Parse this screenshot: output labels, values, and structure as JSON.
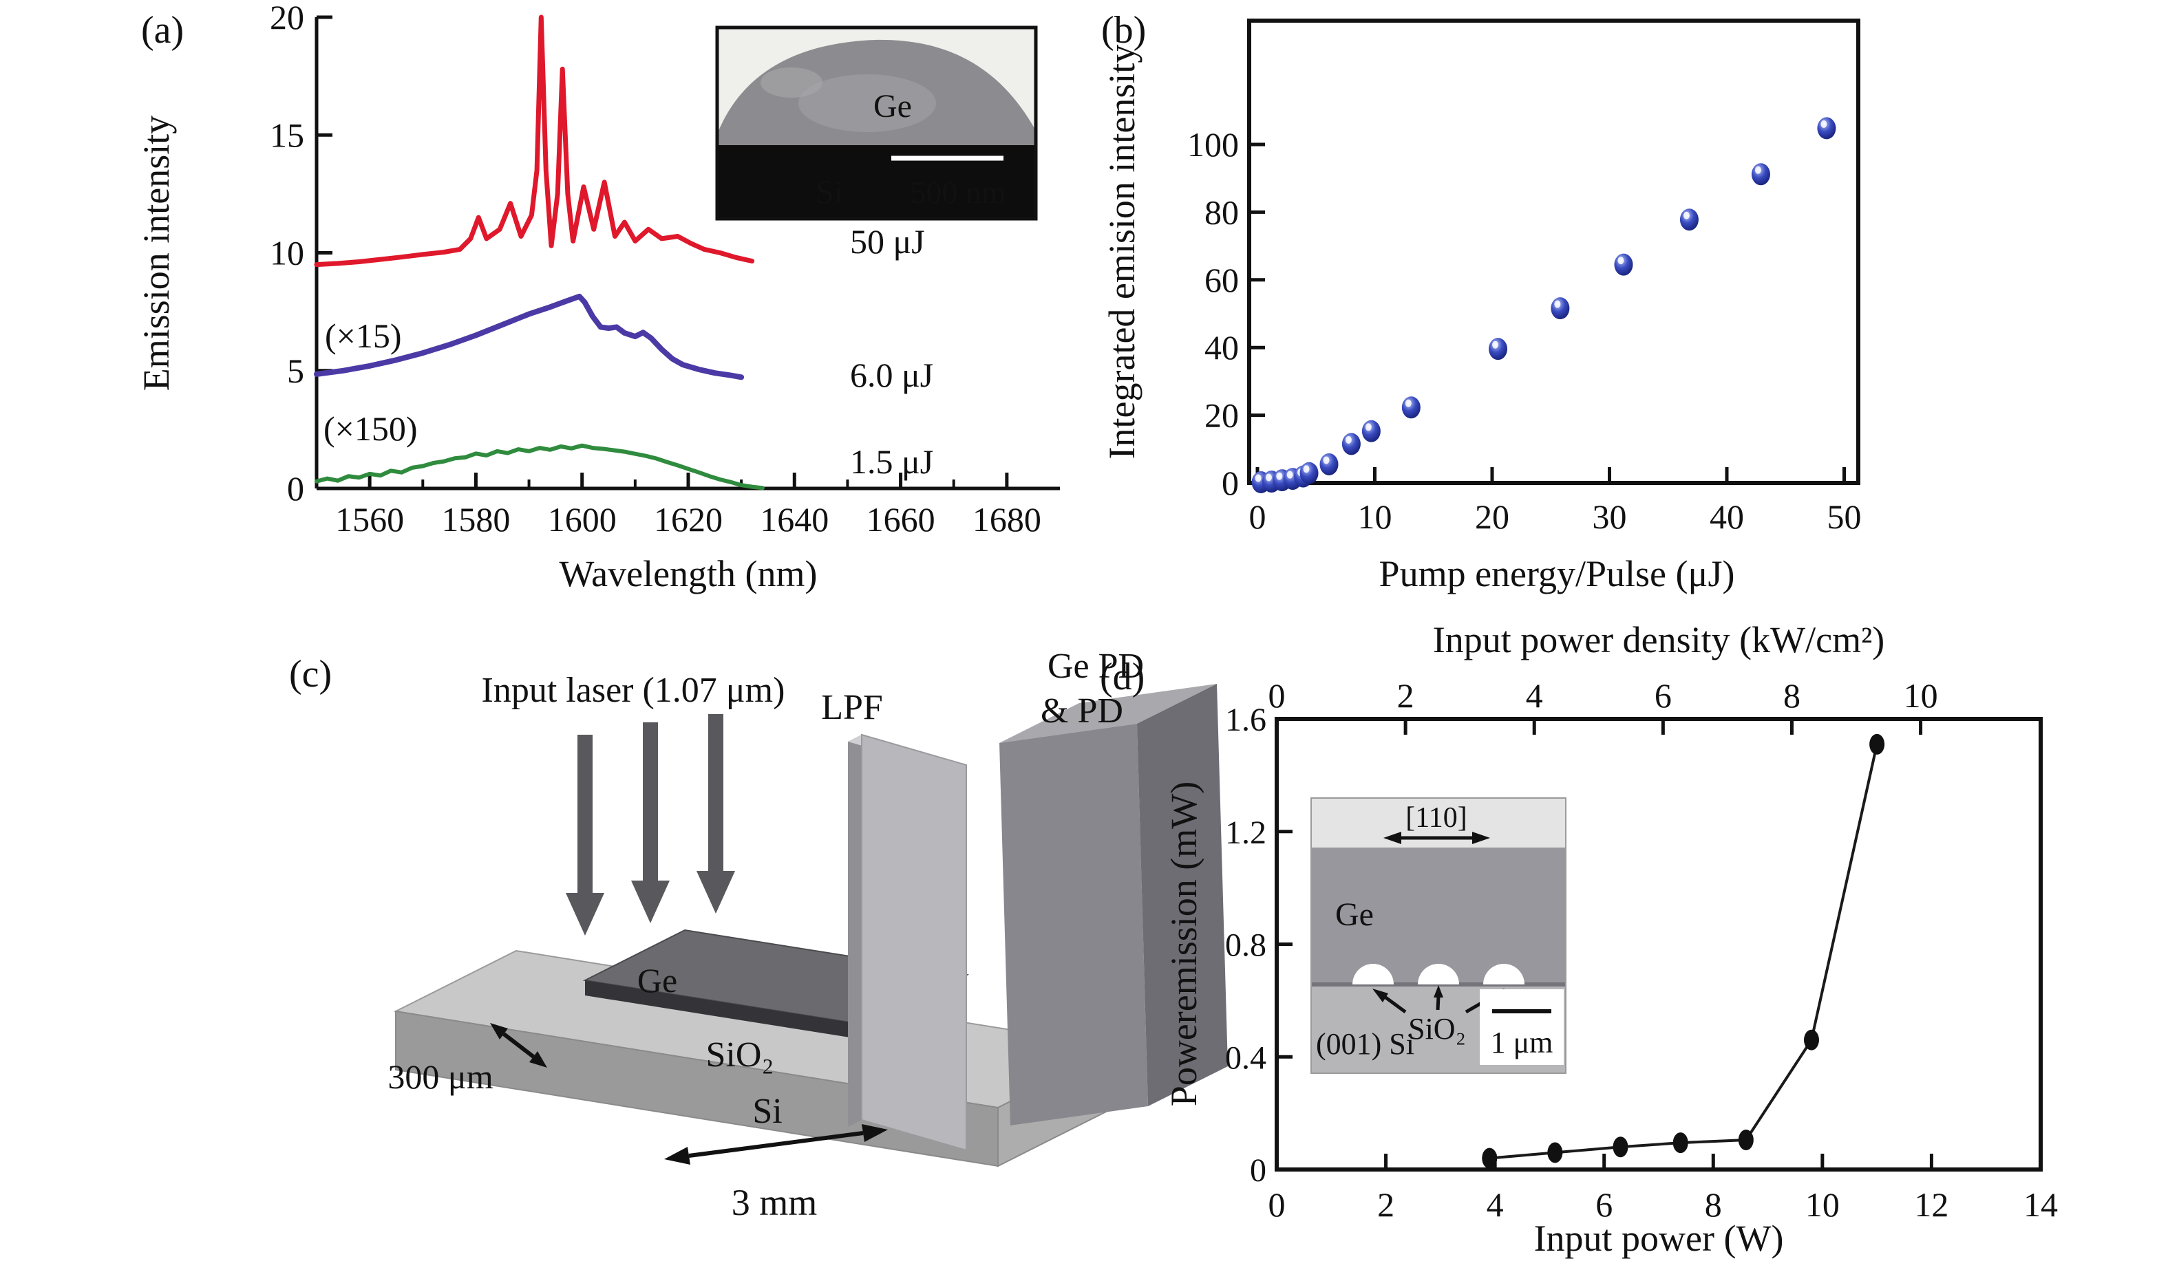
{
  "panels": {
    "a": {
      "label": "(a)",
      "annotations": {
        "mult15": "(×15)",
        "mult150": "(×150)",
        "e50": "50 μJ",
        "e60": "6.0 μJ",
        "e15": "1.5 μJ"
      },
      "inset": {
        "ge": "Ge",
        "si": "Si",
        "scale": "500 nm"
      }
    },
    "b": {
      "label": "(b)"
    },
    "c": {
      "label": "(c)",
      "input_laser": "Input laser (1.07 μm)",
      "ge_pd_line1": "Ge PD",
      "ge_pd_line2": "& PD",
      "lpf": "LPF",
      "ge": "Ge",
      "sio2": "SiO₂",
      "si": "Si",
      "width_label": "300 μm",
      "length_label": "3 mm"
    },
    "d": {
      "label": "(d)",
      "inset": {
        "direction": "[110]",
        "ge": "Ge",
        "sio2": "SiO₂",
        "si": "(001) Si",
        "scale": "1 μm"
      }
    }
  },
  "chart_data": [
    {
      "id": "a",
      "type": "line",
      "xlabel": "Wavelength (nm)",
      "ylabel": "Emission intensity",
      "xlim": [
        1550,
        1690
      ],
      "ylim": [
        0,
        20
      ],
      "x_ticks": [
        1560,
        1580,
        1600,
        1620,
        1640,
        1660,
        1680
      ],
      "y_ticks": [
        0,
        5,
        10,
        15,
        20
      ],
      "series": [
        {
          "name": "50 μJ",
          "color": "#e0182b",
          "points": [
            [
              1550,
              9.5
            ],
            [
              1554,
              9.55
            ],
            [
              1558,
              9.62
            ],
            [
              1562,
              9.72
            ],
            [
              1566,
              9.82
            ],
            [
              1570,
              9.93
            ],
            [
              1574,
              10.03
            ],
            [
              1577,
              10.15
            ],
            [
              1579,
              10.6
            ],
            [
              1580.5,
              11.5
            ],
            [
              1582,
              10.6
            ],
            [
              1584.5,
              11.0
            ],
            [
              1586.5,
              12.1
            ],
            [
              1588.5,
              10.7
            ],
            [
              1590.5,
              11.6
            ],
            [
              1591.5,
              13.5
            ],
            [
              1592.3,
              20
            ],
            [
              1593.2,
              13.5
            ],
            [
              1594.2,
              10.3
            ],
            [
              1595.4,
              12.5
            ],
            [
              1596.3,
              17.8
            ],
            [
              1597.3,
              12.5
            ],
            [
              1598.3,
              10.5
            ],
            [
              1600.3,
              12.8
            ],
            [
              1602.2,
              11.0
            ],
            [
              1604.2,
              13.0
            ],
            [
              1606.2,
              10.7
            ],
            [
              1608,
              11.3
            ],
            [
              1610,
              10.5
            ],
            [
              1612.5,
              11.0
            ],
            [
              1615,
              10.6
            ],
            [
              1618,
              10.7
            ],
            [
              1620.5,
              10.4
            ],
            [
              1623,
              10.15
            ],
            [
              1626,
              10.0
            ],
            [
              1629,
              9.8
            ],
            [
              1632,
              9.65
            ]
          ]
        },
        {
          "name": "6.0 μJ (×15)",
          "color": "#4b3aa5",
          "points": [
            [
              1550,
              4.85
            ],
            [
              1555,
              5.0
            ],
            [
              1560,
              5.2
            ],
            [
              1565,
              5.45
            ],
            [
              1570,
              5.75
            ],
            [
              1575,
              6.1
            ],
            [
              1580,
              6.5
            ],
            [
              1585,
              6.95
            ],
            [
              1590,
              7.4
            ],
            [
              1594,
              7.7
            ],
            [
              1597,
              7.95
            ],
            [
              1599.5,
              8.15
            ],
            [
              1600.5,
              7.9
            ],
            [
              1602,
              7.3
            ],
            [
              1603.5,
              6.85
            ],
            [
              1605,
              6.8
            ],
            [
              1606.5,
              6.85
            ],
            [
              1608,
              6.6
            ],
            [
              1610,
              6.45
            ],
            [
              1611.5,
              6.62
            ],
            [
              1613,
              6.38
            ],
            [
              1615,
              5.9
            ],
            [
              1617,
              5.5
            ],
            [
              1619,
              5.25
            ],
            [
              1622,
              5.05
            ],
            [
              1625,
              4.9
            ],
            [
              1628,
              4.8
            ],
            [
              1630,
              4.72
            ]
          ]
        },
        {
          "name": "1.5 μJ (×150)",
          "color": "#2f8b3d",
          "points": [
            [
              1550,
              0.3
            ],
            [
              1552,
              0.42
            ],
            [
              1554,
              0.33
            ],
            [
              1556,
              0.52
            ],
            [
              1558,
              0.46
            ],
            [
              1560,
              0.62
            ],
            [
              1562,
              0.55
            ],
            [
              1564,
              0.75
            ],
            [
              1566,
              0.68
            ],
            [
              1568,
              0.88
            ],
            [
              1570,
              0.95
            ],
            [
              1572,
              1.08
            ],
            [
              1574,
              1.15
            ],
            [
              1576,
              1.28
            ],
            [
              1578,
              1.32
            ],
            [
              1580,
              1.48
            ],
            [
              1582,
              1.4
            ],
            [
              1584,
              1.58
            ],
            [
              1586,
              1.5
            ],
            [
              1588,
              1.66
            ],
            [
              1590,
              1.58
            ],
            [
              1592,
              1.72
            ],
            [
              1594,
              1.64
            ],
            [
              1596,
              1.78
            ],
            [
              1598,
              1.7
            ],
            [
              1600,
              1.82
            ],
            [
              1602,
              1.72
            ],
            [
              1604,
              1.68
            ],
            [
              1606,
              1.62
            ],
            [
              1608,
              1.56
            ],
            [
              1610,
              1.47
            ],
            [
              1612,
              1.38
            ],
            [
              1614,
              1.27
            ],
            [
              1616,
              1.12
            ],
            [
              1618,
              0.98
            ],
            [
              1620,
              0.83
            ],
            [
              1622,
              0.68
            ],
            [
              1624,
              0.52
            ],
            [
              1626,
              0.38
            ],
            [
              1628,
              0.27
            ],
            [
              1630,
              0.14
            ],
            [
              1632,
              0.07
            ],
            [
              1634,
              0.02
            ]
          ]
        }
      ]
    },
    {
      "id": "b",
      "type": "scatter",
      "xlabel": "Pump energy/Pulse (μJ)",
      "ylabel": "Integrated emision intensity",
      "xlim": [
        0,
        52
      ],
      "ylim": [
        0,
        110
      ],
      "x_ticks": [
        0,
        10,
        20,
        30,
        40,
        50
      ],
      "y_ticks": [
        0,
        20,
        40,
        60,
        80,
        100
      ],
      "marker_color": "#2c3aa8",
      "points": [
        [
          0.3,
          0.2
        ],
        [
          1.2,
          0.4
        ],
        [
          2.1,
          0.8
        ],
        [
          3.0,
          1.2
        ],
        [
          3.9,
          1.9
        ],
        [
          4.4,
          2.9
        ],
        [
          6.1,
          5.5
        ],
        [
          8.0,
          11.5
        ],
        [
          9.7,
          15.3
        ],
        [
          13.1,
          22.3
        ],
        [
          20.5,
          39.6
        ],
        [
          25.8,
          51.6
        ],
        [
          31.2,
          64.5
        ],
        [
          36.8,
          77.8
        ],
        [
          42.9,
          91.2
        ],
        [
          48.5,
          104.8
        ]
      ]
    },
    {
      "id": "d",
      "type": "line-scatter",
      "xlabel": "Input power (W)",
      "ylabel": "Poweremission (mW)",
      "top_xlabel": "Input power density (kW/cm²)",
      "xlim": [
        0,
        14
      ],
      "ylim": [
        0,
        1.6
      ],
      "x_ticks": [
        0,
        2,
        4,
        6,
        8,
        10,
        12,
        14
      ],
      "y_ticks": [
        0,
        0.4,
        0.8,
        1.2,
        1.6
      ],
      "top_ticks": [
        0,
        2,
        4,
        6,
        8,
        10
      ],
      "top_tick_positions_in_W": [
        0,
        2.36,
        4.72,
        7.08,
        9.44,
        11.8
      ],
      "marker_color": "#111111",
      "points": [
        [
          3.9,
          0.04
        ],
        [
          5.1,
          0.06
        ],
        [
          6.3,
          0.08
        ],
        [
          7.4,
          0.095
        ],
        [
          8.6,
          0.105
        ],
        [
          9.8,
          0.46
        ],
        [
          11.0,
          1.51
        ]
      ]
    }
  ]
}
